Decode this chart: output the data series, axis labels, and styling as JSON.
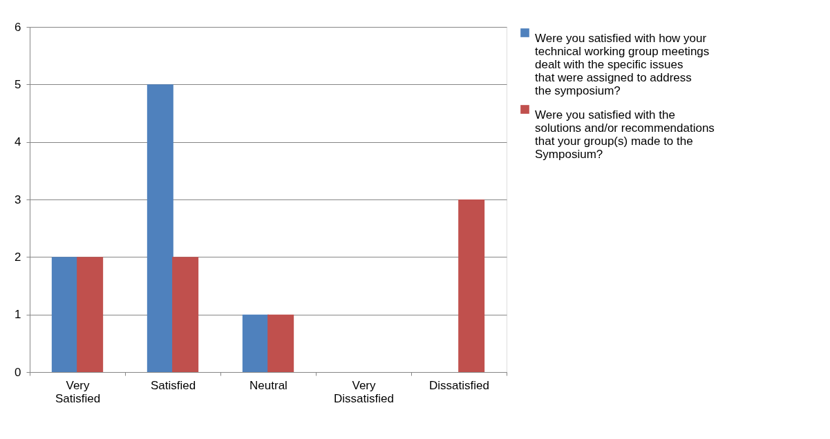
{
  "chart_data": {
    "type": "bar",
    "categories": [
      "Very Satisfied",
      "Satisfied",
      "Neutral",
      "Very Dissatisfied",
      "Dissatisfied"
    ],
    "series": [
      {
        "name": "Were you satisfied with how your technical working group meetings dealt with the specific issues that were assigned to address the symposium?",
        "color": "#4f81bd",
        "values": [
          2,
          5,
          1,
          0,
          0
        ]
      },
      {
        "name": "Were you satisfied with the solutions and/or recommendations that your group(s) made to the Symposium?",
        "color": "#c0504d",
        "values": [
          2,
          2,
          1,
          0,
          3
        ]
      }
    ],
    "ylim": [
      0,
      6
    ],
    "yticks": [
      0,
      1,
      2,
      3,
      4,
      5,
      6
    ],
    "grid": "y",
    "legend": "right"
  }
}
